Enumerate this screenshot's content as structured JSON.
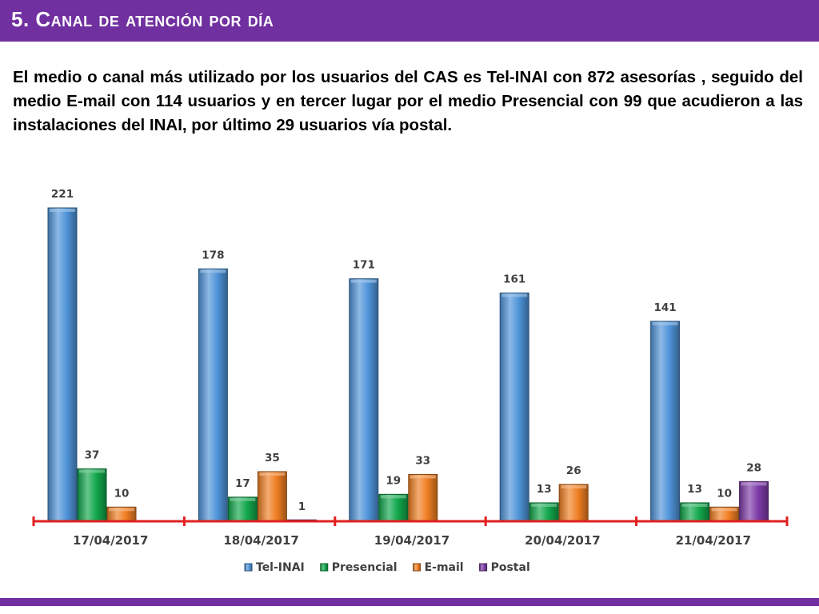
{
  "slide": {
    "title": "5. Canal de atención por día",
    "body": "El medio o canal más utilizado por los usuarios del CAS es Tel-INAI con 872 asesorías , seguido del medio E-mail con 114 usuarios y en tercer lugar por el medio Presencial con 99 que acudieron a las instalaciones del INAI, por último 29 usuarios vía postal.",
    "accent_color": "#7030a0"
  },
  "chart_data": {
    "type": "bar",
    "title": "",
    "xlabel": "",
    "ylabel": "",
    "categories": [
      "17/04/2017",
      "18/04/2017",
      "19/04/2017",
      "20/04/2017",
      "21/04/2017"
    ],
    "series": [
      {
        "name": "Tel-INAI",
        "color": "#4f94d9",
        "values": [
          221,
          178,
          171,
          161,
          141
        ]
      },
      {
        "name": "Presencial",
        "color": "#12a84c",
        "values": [
          37,
          17,
          19,
          13,
          13
        ]
      },
      {
        "name": "E-mail",
        "color": "#f07f23",
        "values": [
          10,
          35,
          33,
          26,
          10
        ]
      },
      {
        "name": "Postal",
        "color": "#7d3ba8",
        "values": [
          null,
          1,
          null,
          null,
          28
        ]
      }
    ],
    "ylim": [
      0,
      221
    ],
    "grid": false,
    "legend_position": "bottom",
    "axis_color": "#e02020"
  }
}
